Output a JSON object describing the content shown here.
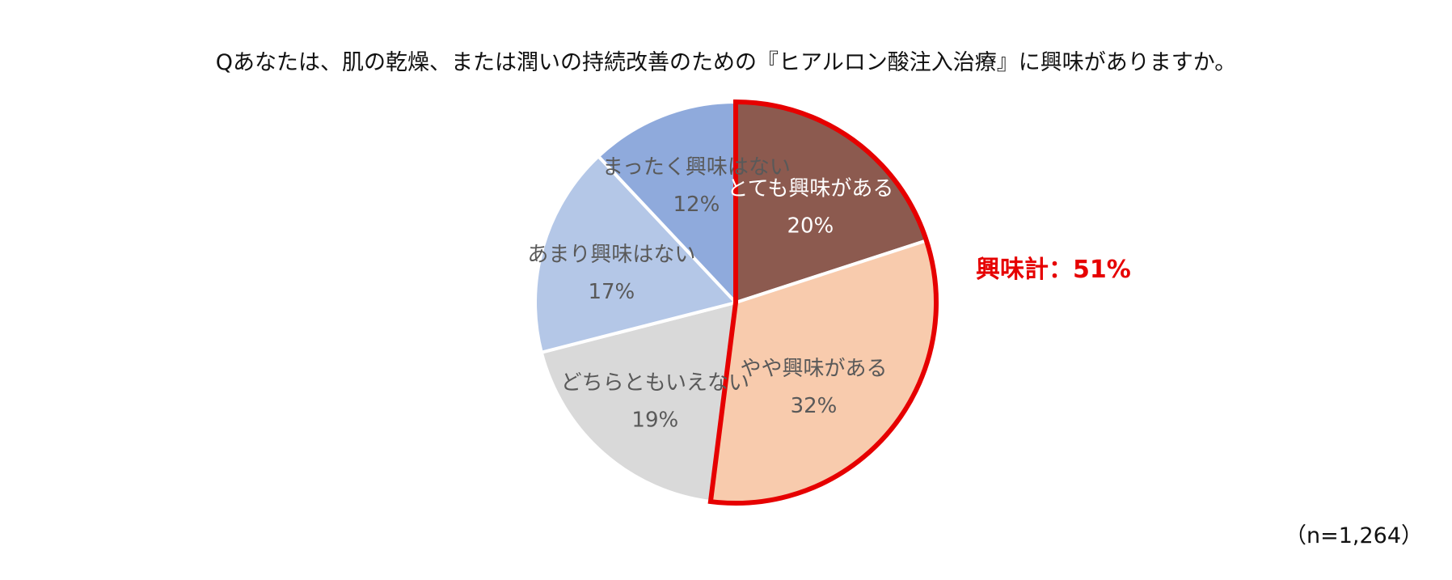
{
  "chart_data": {
    "type": "pie",
    "title": "Qあなたは、肌の乾燥、または潤いの持続改善のための『ヒアルロン酸注入治療』に興味がありますか。",
    "note": "（n=1,264）",
    "slices": [
      {
        "label": "とても興味がある",
        "value": 20,
        "value_label": "20%",
        "color": "#8c5a4f",
        "text_color": "#ffffff"
      },
      {
        "label": "やや興味がある",
        "value": 32,
        "value_label": "32%",
        "color": "#f8cbad",
        "text_color": "#595959"
      },
      {
        "label": "どちらともいえない",
        "value": 19,
        "value_label": "19%",
        "color": "#d9d9d9",
        "text_color": "#595959"
      },
      {
        "label": "あまり興味はない",
        "value": 17,
        "value_label": "17%",
        "color": "#b4c7e7",
        "text_color": "#595959"
      },
      {
        "label": "まったく興味はない",
        "value": 12,
        "value_label": "12%",
        "color": "#8faadc",
        "text_color": "#595959"
      }
    ],
    "highlight": {
      "label": "興味計：51%",
      "slices": [
        "とても興味がある",
        "やや興味がある"
      ],
      "color": "#e60000"
    }
  }
}
